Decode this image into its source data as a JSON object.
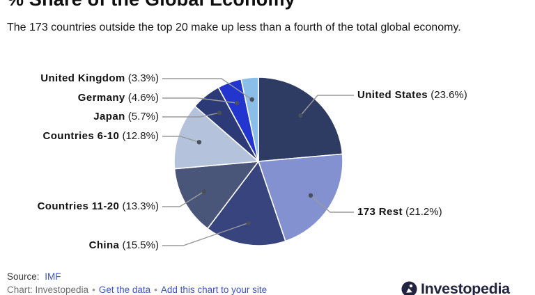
{
  "header": {
    "title": "% Share of the Global Economy",
    "subtitle": "The 173 countries outside the top 20 make up less than a fourth of the total global economy."
  },
  "chart_data": {
    "type": "pie",
    "title": "% Share of the Global Economy",
    "unit": "%",
    "total_percent": 100,
    "start_angle_deg": 0,
    "direction": "clockwise",
    "label_format": "Name (value%)",
    "slices": [
      {
        "label": "United States",
        "value": 23.6,
        "color": "#2e3c63"
      },
      {
        "label": "173 Rest",
        "value": 21.2,
        "color": "#8391d0"
      },
      {
        "label": "China",
        "value": 15.5,
        "color": "#37447d"
      },
      {
        "label": "Countries 11-20",
        "value": 13.3,
        "color": "#4a5679"
      },
      {
        "label": "Countries 6-10",
        "value": 12.8,
        "color": "#b4c3db"
      },
      {
        "label": "Japan",
        "value": 5.7,
        "color": "#2c3a78"
      },
      {
        "label": "Germany",
        "value": 4.6,
        "color": "#2236cf"
      },
      {
        "label": "United Kingdom",
        "value": 3.3,
        "color": "#8abde7"
      }
    ]
  },
  "footer": {
    "source_label": "Source:",
    "source_link": "IMF",
    "attribution": {
      "credit": "Chart: Investopedia",
      "separator": "•",
      "links": [
        "Get the data",
        "Add this chart to your site"
      ]
    },
    "brand": "Investopedia"
  },
  "colors": {
    "link": "#3d52c9",
    "leader_line": "#9a9a9a",
    "dot": "#4a4f59",
    "slice_border": "#ffffff",
    "brand_navy": "#22243f"
  }
}
